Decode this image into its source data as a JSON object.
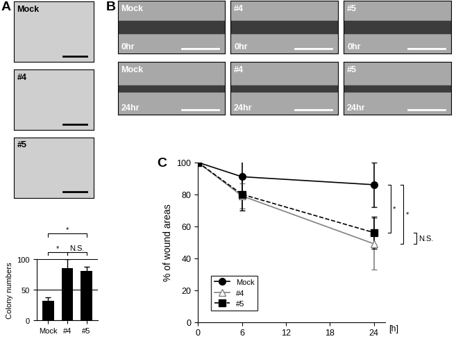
{
  "chart_data": [
    {
      "type": "bar",
      "categories": [
        "Mock",
        "#4",
        "#5"
      ],
      "values": [
        32,
        85,
        81
      ],
      "errors": [
        6,
        15,
        7
      ],
      "color": "#000000",
      "ylabel": "Colony numbers",
      "ylim": [
        0,
        100
      ],
      "yticks": [
        0,
        50,
        100
      ],
      "grid": true,
      "comparisons": [
        {
          "groups": [
            "Mock",
            "#4"
          ],
          "label": "*"
        },
        {
          "groups": [
            "#4",
            "#5"
          ],
          "label": "N.S."
        },
        {
          "groups": [
            "Mock",
            "#5"
          ],
          "label": "*"
        }
      ]
    },
    {
      "type": "line",
      "panel_label": "C",
      "x": [
        0,
        6,
        24
      ],
      "series": [
        {
          "name": "Mock",
          "color": "#000000",
          "marker": "circle",
          "line_style": "solid",
          "values": [
            100,
            91,
            86
          ],
          "errors": [
            0,
            10,
            14
          ]
        },
        {
          "name": "#4",
          "color": "#808080",
          "marker": "open_triangle",
          "line_style": "solid",
          "values": [
            100,
            79,
            49
          ],
          "errors": [
            0,
            8,
            16
          ]
        },
        {
          "name": "#5",
          "color": "#000000",
          "marker": "square",
          "line_style": "dashed",
          "values": [
            100,
            80,
            56
          ],
          "errors": [
            0,
            10,
            10
          ]
        }
      ],
      "xlabel": "[h]",
      "ylabel": "% of wound areas",
      "xlim": [
        0,
        25.5
      ],
      "xticks": [
        0,
        6,
        12,
        18,
        24
      ],
      "ylim": [
        0,
        100
      ],
      "yticks": [
        0,
        20,
        40,
        60,
        80,
        100
      ],
      "legend": "lower left",
      "comparisons": [
        {
          "groups": [
            "Mock",
            "#5"
          ],
          "label": "*"
        },
        {
          "groups": [
            "Mock",
            "#4"
          ],
          "label": "*"
        },
        {
          "groups": [
            "#4",
            "#5"
          ],
          "label": "N.S."
        }
      ]
    }
  ],
  "image_panels": [
    {
      "panel_label": "A",
      "labels": [
        "Mock",
        "#4",
        "#5"
      ]
    },
    {
      "panel_label": "B",
      "columns": [
        "Mock",
        "#4",
        "#5"
      ],
      "rows": [
        "0hr",
        "24hr"
      ]
    }
  ]
}
